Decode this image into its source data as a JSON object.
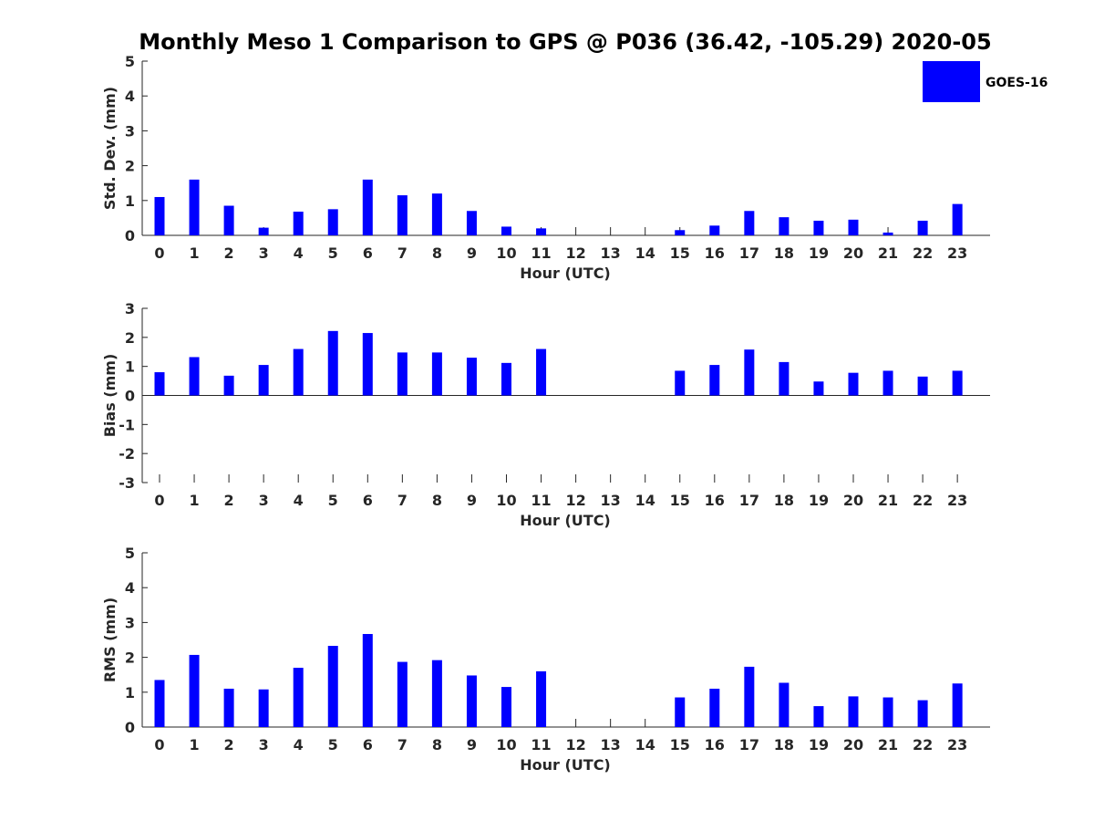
{
  "chart_data": {
    "type": "bar",
    "title": "Monthly Meso 1 Comparison to GPS @ P036 (36.42, -105.29) 2020-05",
    "legend": {
      "placement": "top-right",
      "entries": [
        {
          "name": "GOES-16",
          "color": "#0000ff"
        }
      ]
    },
    "grid": false,
    "bar_color": "#0000ff",
    "panels": [
      {
        "xlabel": "Hour (UTC)",
        "ylabel": "Std. Dev. (mm)",
        "ylim": [
          0,
          5
        ],
        "yticks": [
          "0",
          "1",
          "2",
          "3",
          "4",
          "5"
        ],
        "categories": [
          "0",
          "1",
          "2",
          "3",
          "4",
          "5",
          "6",
          "7",
          "8",
          "9",
          "10",
          "11",
          "12",
          "13",
          "14",
          "15",
          "16",
          "17",
          "18",
          "19",
          "20",
          "21",
          "22",
          "23"
        ],
        "values": [
          1.1,
          1.6,
          0.85,
          0.22,
          0.68,
          0.75,
          1.6,
          1.15,
          1.2,
          0.7,
          0.25,
          0.2,
          null,
          null,
          null,
          0.15,
          0.28,
          0.7,
          0.52,
          0.42,
          0.45,
          0.08,
          0.42,
          0.9
        ]
      },
      {
        "xlabel": "Hour (UTC)",
        "ylabel": "Bias (mm)",
        "ylim": [
          -3,
          3
        ],
        "yticks": [
          "-3",
          "-2",
          "-1",
          "0",
          "1",
          "2",
          "3"
        ],
        "categories": [
          "0",
          "1",
          "2",
          "3",
          "4",
          "5",
          "6",
          "7",
          "8",
          "9",
          "10",
          "11",
          "12",
          "13",
          "14",
          "15",
          "16",
          "17",
          "18",
          "19",
          "20",
          "21",
          "22",
          "23"
        ],
        "values": [
          0.8,
          1.32,
          0.68,
          1.05,
          1.6,
          2.22,
          2.15,
          1.48,
          1.48,
          1.3,
          1.12,
          1.6,
          null,
          null,
          null,
          0.85,
          1.05,
          1.58,
          1.15,
          0.48,
          0.78,
          0.85,
          0.65,
          0.85
        ]
      },
      {
        "xlabel": "Hour (UTC)",
        "ylabel": "RMS (mm)",
        "ylim": [
          0,
          5
        ],
        "yticks": [
          "0",
          "1",
          "2",
          "3",
          "4",
          "5"
        ],
        "categories": [
          "0",
          "1",
          "2",
          "3",
          "4",
          "5",
          "6",
          "7",
          "8",
          "9",
          "10",
          "11",
          "12",
          "13",
          "14",
          "15",
          "16",
          "17",
          "18",
          "19",
          "20",
          "21",
          "22",
          "23"
        ],
        "values": [
          1.35,
          2.07,
          1.1,
          1.08,
          1.7,
          2.33,
          2.67,
          1.87,
          1.92,
          1.48,
          1.15,
          1.6,
          null,
          null,
          null,
          0.85,
          1.1,
          1.73,
          1.27,
          0.6,
          0.88,
          0.85,
          0.77,
          1.25
        ]
      }
    ]
  }
}
